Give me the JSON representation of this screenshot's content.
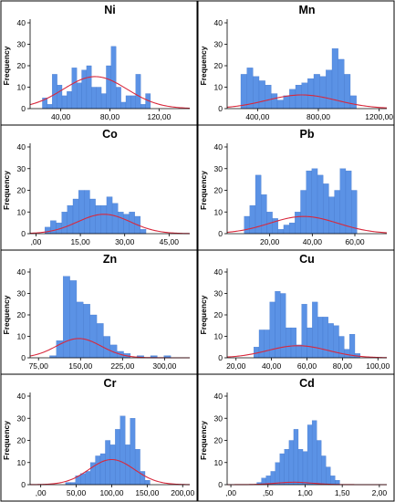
{
  "chart_data": [
    {
      "type": "bar",
      "title": "Ni",
      "ylabel": "Frequency",
      "xlim": [
        15,
        145
      ],
      "ylim": [
        0,
        40
      ],
      "xticks": [
        {
          "v": 40,
          "label": "40,00"
        },
        {
          "v": 80,
          "label": "80,00"
        },
        {
          "v": 120,
          "label": "120,00"
        }
      ],
      "yticks": [
        0,
        10,
        20,
        30,
        40
      ],
      "bin_start": 25,
      "bin_width": 4,
      "counts": [
        5,
        2,
        16,
        11,
        6,
        8,
        19,
        12,
        18,
        20,
        10,
        10,
        7,
        20,
        29,
        10,
        3,
        6,
        6,
        16,
        2,
        7
      ],
      "normal_curve": {
        "mean": 68,
        "sd": 26,
        "n": 243
      }
    },
    {
      "type": "bar",
      "title": "Mn",
      "ylabel": "Frequency",
      "xlim": [
        200,
        1250
      ],
      "ylim": [
        0,
        40
      ],
      "xticks": [
        {
          "v": 400,
          "label": "400,00"
        },
        {
          "v": 800,
          "label": "800,00"
        },
        {
          "v": 1200,
          "label": "1200,00"
        }
      ],
      "yticks": [
        0,
        10,
        20,
        30,
        40
      ],
      "bin_start": 290,
      "bin_width": 40,
      "counts": [
        16,
        19,
        15,
        13,
        11,
        7,
        4,
        6,
        9,
        11,
        12,
        14,
        16,
        15,
        18,
        28,
        23,
        16,
        6
      ],
      "normal_curve": {
        "mean": 690,
        "sd": 230,
        "n": 92
      }
    },
    {
      "type": "bar",
      "title": "Co",
      "ylabel": "Frequency",
      "xlim": [
        -2,
        52
      ],
      "ylim": [
        0,
        40
      ],
      "xticks": [
        {
          "v": 0,
          "label": ",00"
        },
        {
          "v": 15,
          "label": "15,00"
        },
        {
          "v": 30,
          "label": "30,00"
        },
        {
          "v": 45,
          "label": "45,00"
        }
      ],
      "yticks": [
        0,
        10,
        20,
        30,
        40
      ],
      "bin_start": 3,
      "bin_width": 1.9,
      "counts": [
        3,
        6,
        5,
        10,
        13,
        16,
        20,
        20,
        16,
        13,
        13,
        17,
        14,
        10,
        9,
        10,
        8,
        2
      ],
      "normal_curve": {
        "mean": 23,
        "sd": 9,
        "n": 106
      }
    },
    {
      "type": "bar",
      "title": "Pb",
      "ylabel": "Frequency",
      "xlim": [
        0,
        75
      ],
      "ylim": [
        0,
        40
      ],
      "xticks": [
        {
          "v": 20,
          "label": "20,00"
        },
        {
          "v": 40,
          "label": "40,00"
        },
        {
          "v": 60,
          "label": "60,00"
        }
      ],
      "yticks": [
        0,
        10,
        20,
        30,
        40
      ],
      "bin_start": 8,
      "bin_width": 2.65,
      "counts": [
        8,
        13,
        27,
        18,
        10,
        7,
        2,
        4,
        5,
        10,
        20,
        29,
        30,
        27,
        23,
        17,
        20,
        30,
        29,
        20
      ],
      "normal_curve": {
        "mean": 36,
        "sd": 16,
        "n": 120
      }
    },
    {
      "type": "bar",
      "title": "Zn",
      "ylabel": "Frequency",
      "xlim": [
        60,
        345
      ],
      "ylim": [
        0,
        40
      ],
      "xticks": [
        {
          "v": 75,
          "label": "75,00"
        },
        {
          "v": 150,
          "label": "150,00"
        },
        {
          "v": 225,
          "label": "225,00"
        },
        {
          "v": 300,
          "label": "300,00"
        }
      ],
      "yticks": [
        0,
        10,
        20,
        30,
        40
      ],
      "bin_start": 95,
      "bin_width": 12,
      "counts": [
        1,
        8,
        38,
        36,
        26,
        25,
        20,
        16,
        10,
        6,
        3,
        2,
        0,
        1,
        0,
        1,
        0,
        1
      ],
      "normal_curve": {
        "mean": 147,
        "sd": 40,
        "n": 75
      }
    },
    {
      "type": "bar",
      "title": "Cu",
      "ylabel": "Frequency",
      "xlim": [
        15,
        105
      ],
      "ylim": [
        0,
        40
      ],
      "xticks": [
        {
          "v": 20,
          "label": "20,00"
        },
        {
          "v": 40,
          "label": "40,00"
        },
        {
          "v": 60,
          "label": "60,00"
        },
        {
          "v": 80,
          "label": "80,00"
        },
        {
          "v": 100,
          "label": "100,00"
        }
      ],
      "yticks": [
        0,
        10,
        20,
        30,
        40
      ],
      "bin_start": 30,
      "bin_width": 3,
      "counts": [
        5,
        13,
        13,
        26,
        31,
        30,
        14,
        14,
        6,
        25,
        14,
        26,
        19,
        19,
        16,
        15,
        10,
        4,
        11,
        2
      ],
      "normal_curve": {
        "mean": 55,
        "sd": 17,
        "n": 80
      }
    },
    {
      "type": "bar",
      "title": "Cr",
      "ylabel": "Frequency",
      "xlim": [
        -15,
        210
      ],
      "ylim": [
        0,
        40
      ],
      "xticks": [
        {
          "v": 0,
          "label": ",00"
        },
        {
          "v": 50,
          "label": "50,00"
        },
        {
          "v": 100,
          "label": "100,00"
        },
        {
          "v": 150,
          "label": "150,00"
        },
        {
          "v": 200,
          "label": "200,00"
        }
      ],
      "yticks": [
        0,
        10,
        20,
        30,
        40
      ],
      "bin_start": 35,
      "bin_width": 7,
      "counts": [
        1,
        1,
        4,
        5,
        6,
        10,
        13,
        14,
        20,
        18,
        25,
        31,
        18,
        30,
        16,
        6,
        2
      ],
      "normal_curve": {
        "mean": 100,
        "sd": 32,
        "n": 130
      }
    },
    {
      "type": "bar",
      "title": "Cd",
      "ylabel": "Frequency",
      "xlim": [
        -0.05,
        2.1
      ],
      "ylim": [
        0,
        40
      ],
      "xticks": [
        {
          "v": 0,
          "label": ",00"
        },
        {
          "v": 0.5,
          "label": ",50"
        },
        {
          "v": 1.0,
          "label": "1,00"
        },
        {
          "v": 1.5,
          "label": "1,50"
        },
        {
          "v": 2.0,
          "label": "2,00"
        }
      ],
      "yticks": [
        0,
        10,
        20,
        30,
        40
      ],
      "bin_start": 0.35,
      "bin_width": 0.062,
      "counts": [
        1,
        3,
        4,
        6,
        10,
        14,
        16,
        20,
        25,
        16,
        15,
        27,
        29,
        20,
        13,
        8,
        4,
        2
      ],
      "normal_curve": {
        "mean": 0.85,
        "sd": 0.25,
        "n": 11
      }
    }
  ]
}
